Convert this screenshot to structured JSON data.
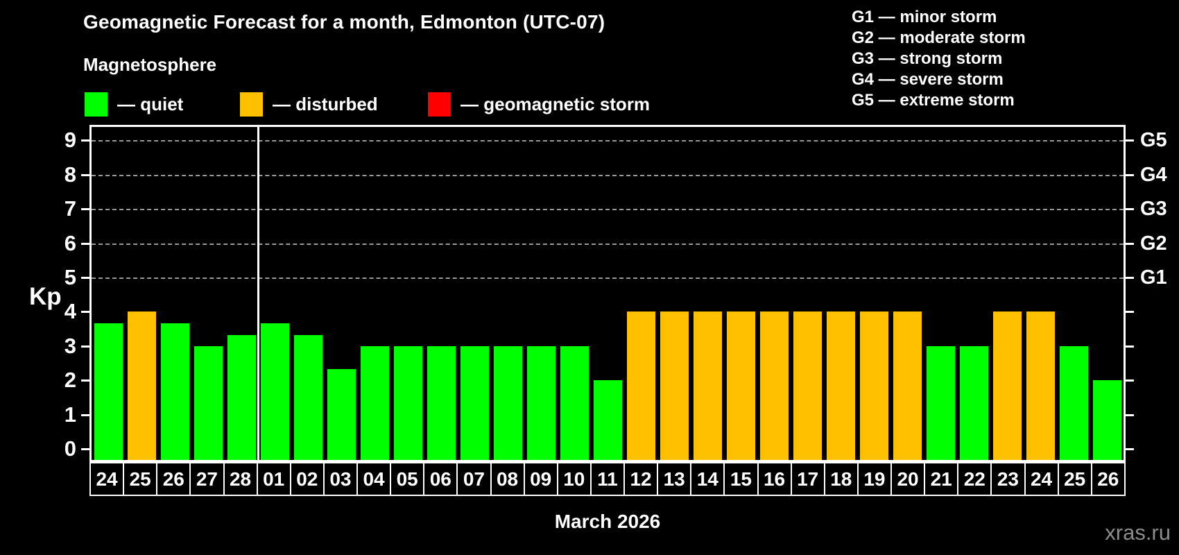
{
  "page": {
    "background": "#000000"
  },
  "header": {
    "title": "Geomagnetic Forecast for a month, Edmonton (UTC-07)",
    "subtitle": "Magnetosphere"
  },
  "legend": {
    "items": [
      {
        "label": "— quiet",
        "color": "#00ff00",
        "status": "quiet"
      },
      {
        "label": "— disturbed",
        "color": "#ffc000",
        "status": "disturbed"
      },
      {
        "label": "— geomagnetic storm",
        "color": "#ff0000",
        "status": "storm"
      }
    ]
  },
  "g_scale_legend": {
    "lines": [
      "G1 — minor storm",
      "G2 — moderate storm",
      "G3 — strong storm",
      "G4 — severe storm",
      "G5 — extreme storm"
    ]
  },
  "chart_data": {
    "type": "bar",
    "title": "Geomagnetic Forecast for a month, Edmonton (UTC-07)",
    "subtitle": "Magnetosphere",
    "xlabel": "March 2026",
    "ylabel": "Kp",
    "ylim": [
      0,
      9.4
    ],
    "yticks": [
      0,
      1,
      2,
      3,
      4,
      5,
      6,
      7,
      8,
      9
    ],
    "gridlines_at_kp": [
      5,
      6,
      7,
      8,
      9
    ],
    "right_axis_labels": [
      {
        "label": "G1",
        "kp": 5
      },
      {
        "label": "G2",
        "kp": 6
      },
      {
        "label": "G3",
        "kp": 7
      },
      {
        "label": "G4",
        "kp": 8
      },
      {
        "label": "G5",
        "kp": 9
      }
    ],
    "colors": {
      "quiet": "#00ff00",
      "disturbed": "#ffc000",
      "storm": "#ff0000"
    },
    "month_boundary_after_index": 4,
    "points": [
      {
        "date": "24",
        "kp": 3.67,
        "status": "quiet"
      },
      {
        "date": "25",
        "kp": 4.0,
        "status": "disturbed"
      },
      {
        "date": "26",
        "kp": 3.67,
        "status": "quiet"
      },
      {
        "date": "27",
        "kp": 3.0,
        "status": "quiet"
      },
      {
        "date": "28",
        "kp": 3.33,
        "status": "quiet"
      },
      {
        "date": "01",
        "kp": 3.67,
        "status": "quiet"
      },
      {
        "date": "02",
        "kp": 3.33,
        "status": "quiet"
      },
      {
        "date": "03",
        "kp": 2.33,
        "status": "quiet"
      },
      {
        "date": "04",
        "kp": 3.0,
        "status": "quiet"
      },
      {
        "date": "05",
        "kp": 3.0,
        "status": "quiet"
      },
      {
        "date": "06",
        "kp": 3.0,
        "status": "quiet"
      },
      {
        "date": "07",
        "kp": 3.0,
        "status": "quiet"
      },
      {
        "date": "08",
        "kp": 3.0,
        "status": "quiet"
      },
      {
        "date": "09",
        "kp": 3.0,
        "status": "quiet"
      },
      {
        "date": "10",
        "kp": 3.0,
        "status": "quiet"
      },
      {
        "date": "11",
        "kp": 2.0,
        "status": "quiet"
      },
      {
        "date": "12",
        "kp": 4.0,
        "status": "disturbed"
      },
      {
        "date": "13",
        "kp": 4.0,
        "status": "disturbed"
      },
      {
        "date": "14",
        "kp": 4.0,
        "status": "disturbed"
      },
      {
        "date": "15",
        "kp": 4.0,
        "status": "disturbed"
      },
      {
        "date": "16",
        "kp": 4.0,
        "status": "disturbed"
      },
      {
        "date": "17",
        "kp": 4.0,
        "status": "disturbed"
      },
      {
        "date": "18",
        "kp": 4.0,
        "status": "disturbed"
      },
      {
        "date": "19",
        "kp": 4.0,
        "status": "disturbed"
      },
      {
        "date": "20",
        "kp": 4.0,
        "status": "disturbed"
      },
      {
        "date": "21",
        "kp": 3.0,
        "status": "quiet"
      },
      {
        "date": "22",
        "kp": 3.0,
        "status": "quiet"
      },
      {
        "date": "23",
        "kp": 4.0,
        "status": "disturbed"
      },
      {
        "date": "24",
        "kp": 4.0,
        "status": "disturbed"
      },
      {
        "date": "25",
        "kp": 3.0,
        "status": "quiet"
      },
      {
        "date": "26",
        "kp": 2.0,
        "status": "quiet"
      }
    ]
  },
  "footer": {
    "month_label": "March 2026",
    "watermark": "xras.ru"
  }
}
